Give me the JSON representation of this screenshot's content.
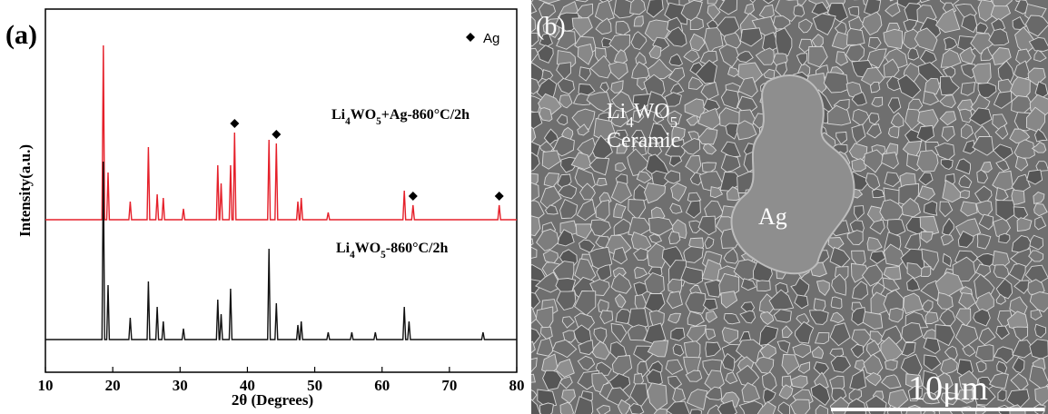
{
  "chart_data": {
    "type": "line",
    "panel_label": "(a)",
    "x_label": "2θ (Degrees)",
    "y_label": "Intensity(a.u.)",
    "xlim": [
      10,
      80
    ],
    "xticks": [
      10,
      20,
      30,
      40,
      50,
      60,
      70,
      80
    ],
    "ylim": [
      0,
      100
    ],
    "marker_legend": "Ag",
    "marker_x": [
      38.1,
      44.3,
      64.6,
      77.4
    ],
    "series": [
      {
        "name": "Li4WO5+Ag-860°C/2h",
        "color": "#e5202a",
        "x": [
          10,
          18.4,
          18.6,
          18.8,
          19.1,
          19.3,
          19.5,
          22.4,
          22.6,
          22.8,
          25.1,
          25.3,
          25.5,
          26.4,
          26.6,
          26.8,
          27.3,
          27.5,
          27.7,
          30.3,
          30.5,
          30.7,
          35.4,
          35.6,
          35.8,
          35.9,
          36.1,
          36.3,
          37.3,
          37.5,
          37.7,
          37.9,
          38.1,
          38.3,
          43.0,
          43.2,
          43.4,
          44.1,
          44.3,
          44.5,
          47.3,
          47.5,
          47.7,
          47.8,
          48.0,
          48.2,
          51.8,
          52,
          52.2,
          63.1,
          63.3,
          63.5,
          64.4,
          64.6,
          64.8,
          77.2,
          77.4,
          77.6,
          80
        ],
        "values": [
          42,
          42,
          90,
          42,
          42,
          55,
          42,
          42,
          47,
          42,
          42,
          62,
          42,
          42,
          49,
          42,
          42,
          48,
          42,
          42,
          45,
          42,
          42,
          57,
          42,
          42,
          52,
          42,
          42,
          57,
          42,
          42,
          66,
          42,
          42,
          64,
          42,
          42,
          63,
          42,
          42,
          47,
          42,
          42,
          48,
          42,
          42,
          44,
          42,
          42,
          50,
          42,
          42,
          46,
          42,
          42,
          46,
          42,
          42
        ]
      },
      {
        "name": "Li4WO5-860°C/2h",
        "color": "#111111",
        "x": [
          10,
          18.4,
          18.6,
          18.8,
          19.1,
          19.3,
          19.5,
          22.4,
          22.6,
          22.8,
          25.1,
          25.3,
          25.5,
          26.4,
          26.6,
          26.8,
          27.3,
          27.5,
          27.7,
          30.3,
          30.5,
          30.7,
          35.4,
          35.6,
          35.8,
          35.9,
          36.1,
          36.3,
          37.3,
          37.5,
          37.7,
          43.0,
          43.2,
          43.4,
          44.1,
          44.3,
          44.5,
          47.3,
          47.5,
          47.7,
          47.8,
          48.0,
          48.2,
          51.8,
          52,
          52.2,
          55.3,
          55.5,
          55.7,
          58.8,
          59,
          59.2,
          63.1,
          63.3,
          63.5,
          63.8,
          64,
          64.2,
          74.8,
          75,
          75.2,
          80
        ],
        "values": [
          9,
          9,
          58,
          9,
          9,
          24,
          9,
          9,
          15,
          9,
          9,
          25,
          9,
          9,
          18,
          9,
          9,
          14,
          9,
          9,
          12,
          9,
          9,
          20,
          9,
          9,
          16,
          9,
          9,
          23,
          9,
          9,
          34,
          9,
          9,
          19,
          9,
          9,
          13,
          9,
          9,
          14,
          9,
          9,
          11,
          9,
          9,
          11,
          9,
          9,
          11,
          9,
          9,
          18,
          9,
          9,
          14,
          9,
          9,
          11,
          9,
          9
        ]
      }
    ]
  },
  "image": {
    "panel_label": "(b)",
    "material": "Li4WO5",
    "material_type": "Ceramic",
    "inclusion": "Ag",
    "scale_bar": "10μm"
  }
}
